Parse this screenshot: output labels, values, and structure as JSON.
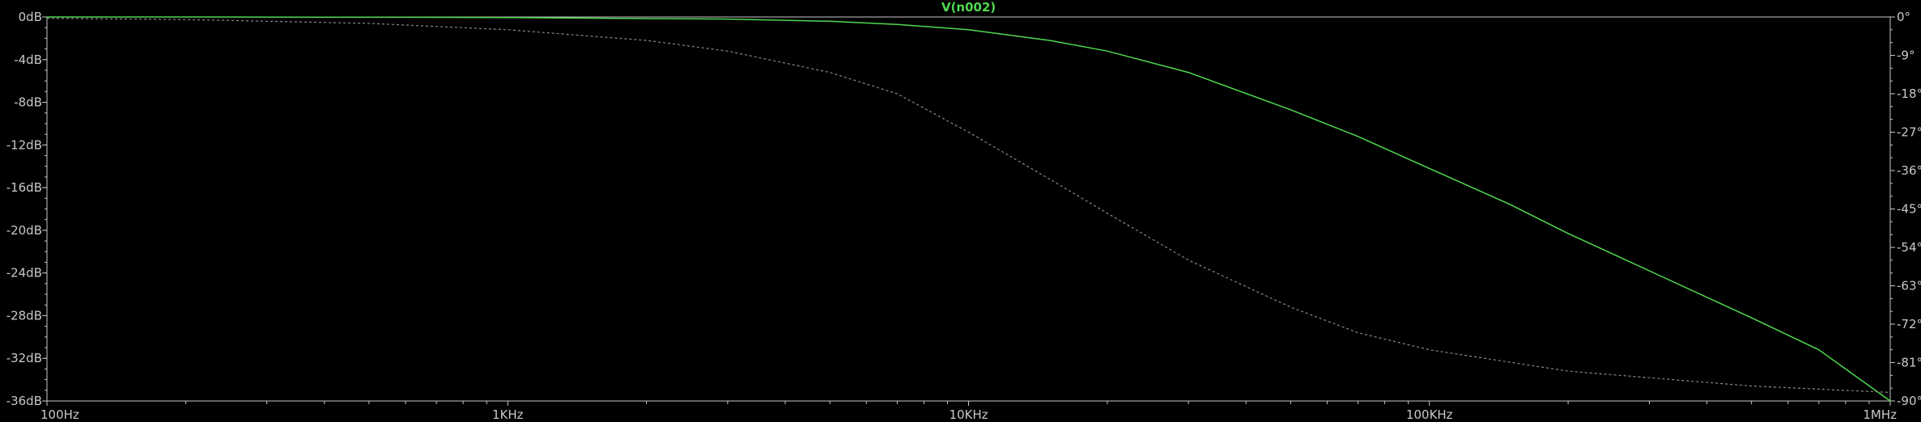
{
  "chart_data": {
    "type": "line",
    "title": "V(n002)",
    "xscale": "log",
    "xlim": [
      100,
      1000000
    ],
    "x_ticks": [
      {
        "value": 100,
        "label": "100Hz"
      },
      {
        "value": 1000,
        "label": "1KHz"
      },
      {
        "value": 10000,
        "label": "10KHz"
      },
      {
        "value": 100000,
        "label": "100KHz"
      },
      {
        "value": 1000000,
        "label": "1MHz"
      }
    ],
    "y_left": {
      "unit": "dB",
      "lim": [
        -36,
        0
      ],
      "ticks": [
        {
          "value": 0,
          "label": "0dB"
        },
        {
          "value": -4,
          "label": "-4dB"
        },
        {
          "value": -8,
          "label": "-8dB"
        },
        {
          "value": -12,
          "label": "-12dB"
        },
        {
          "value": -16,
          "label": "-16dB"
        },
        {
          "value": -20,
          "label": "-20dB"
        },
        {
          "value": -24,
          "label": "-24dB"
        },
        {
          "value": -28,
          "label": "-28dB"
        },
        {
          "value": -32,
          "label": "-32dB"
        },
        {
          "value": -36,
          "label": "-36dB"
        }
      ]
    },
    "y_right": {
      "unit": "°",
      "lim": [
        -90,
        0
      ],
      "ticks": [
        {
          "value": 0,
          "label": "0°"
        },
        {
          "value": -9,
          "label": "-9°"
        },
        {
          "value": -18,
          "label": "-18°"
        },
        {
          "value": -27,
          "label": "-27°"
        },
        {
          "value": -36,
          "label": "-36°"
        },
        {
          "value": -45,
          "label": "-45°"
        },
        {
          "value": -54,
          "label": "-54°"
        },
        {
          "value": -63,
          "label": "-63°"
        },
        {
          "value": -72,
          "label": "-72°"
        },
        {
          "value": -81,
          "label": "-81°"
        },
        {
          "value": -90,
          "label": "-90°"
        }
      ]
    },
    "grid": false,
    "series": [
      {
        "name": "V(n002)",
        "quantity": "magnitude",
        "axis": "left",
        "color": "#4fd84f",
        "style": "solid",
        "x": [
          100,
          200,
          500,
          1000,
          2000,
          3000,
          5000,
          7000,
          10000,
          15000,
          20000,
          30000,
          50000,
          70000,
          100000,
          150000,
          200000,
          300000,
          500000,
          700000,
          1000000
        ],
        "y": [
          0,
          0,
          -0.02,
          -0.05,
          -0.15,
          -0.2,
          -0.4,
          -0.7,
          -1.2,
          -2.2,
          -3.2,
          -5.2,
          -8.7,
          -11.2,
          -14.2,
          -17.6,
          -20.3,
          -23.8,
          -28.2,
          -31.2,
          -36
        ]
      },
      {
        "name": "",
        "quantity": "phase",
        "axis": "right",
        "color": "#8a8a8a",
        "style": "dashed",
        "x": [
          100,
          200,
          500,
          1000,
          2000,
          3000,
          5000,
          7000,
          10000,
          15000,
          20000,
          30000,
          50000,
          70000,
          100000,
          200000,
          500000,
          1000000
        ],
        "y": [
          -0.3,
          -0.6,
          -1.5,
          -3,
          -5.5,
          -8,
          -13,
          -18,
          -27,
          -38,
          -46,
          -57,
          -68,
          -74,
          -78,
          -83,
          -86.5,
          -88
        ]
      }
    ]
  }
}
